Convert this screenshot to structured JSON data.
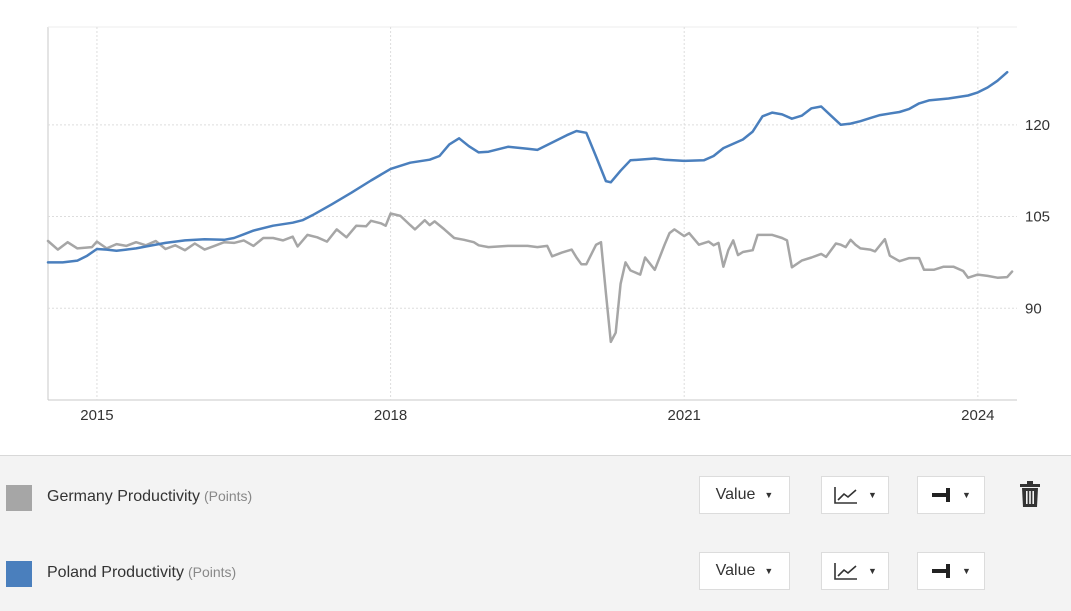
{
  "chart_data": {
    "type": "line",
    "x_ticks": [
      "2015",
      "2018",
      "2021",
      "2024"
    ],
    "y_ticks": [
      "90",
      "105",
      "120"
    ],
    "ylim": [
      75,
      136
    ],
    "xlim": [
      2014.5,
      2024.4
    ],
    "y_axis_position": "right",
    "grid": true,
    "series": [
      {
        "name": "Germany Productivity",
        "unit": "(Points)",
        "color": "#a6a6a6",
        "points": [
          [
            2014.5,
            101.0
          ],
          [
            2014.6,
            99.6
          ],
          [
            2014.7,
            100.8
          ],
          [
            2014.8,
            99.8
          ],
          [
            2014.95,
            100.0
          ],
          [
            2015.0,
            100.9
          ],
          [
            2015.1,
            99.8
          ],
          [
            2015.2,
            100.5
          ],
          [
            2015.3,
            100.2
          ],
          [
            2015.4,
            100.8
          ],
          [
            2015.5,
            100.3
          ],
          [
            2015.6,
            101.0
          ],
          [
            2015.7,
            99.7
          ],
          [
            2015.8,
            100.3
          ],
          [
            2015.9,
            99.5
          ],
          [
            2016.0,
            100.6
          ],
          [
            2016.1,
            99.6
          ],
          [
            2016.2,
            100.2
          ],
          [
            2016.3,
            100.8
          ],
          [
            2016.4,
            100.7
          ],
          [
            2016.5,
            101.1
          ],
          [
            2016.6,
            100.2
          ],
          [
            2016.7,
            101.5
          ],
          [
            2016.8,
            101.5
          ],
          [
            2016.9,
            101.1
          ],
          [
            2017.0,
            101.7
          ],
          [
            2017.05,
            100.1
          ],
          [
            2017.15,
            102.0
          ],
          [
            2017.25,
            101.6
          ],
          [
            2017.35,
            100.9
          ],
          [
            2017.45,
            102.9
          ],
          [
            2017.55,
            101.6
          ],
          [
            2017.65,
            103.5
          ],
          [
            2017.75,
            103.4
          ],
          [
            2017.8,
            104.3
          ],
          [
            2017.9,
            103.9
          ],
          [
            2017.95,
            103.5
          ],
          [
            2018.0,
            105.5
          ],
          [
            2018.1,
            105.1
          ],
          [
            2018.2,
            103.6
          ],
          [
            2018.25,
            102.9
          ],
          [
            2018.35,
            104.4
          ],
          [
            2018.4,
            103.6
          ],
          [
            2018.45,
            104.2
          ],
          [
            2018.55,
            102.9
          ],
          [
            2018.65,
            101.5
          ],
          [
            2018.75,
            101.2
          ],
          [
            2018.85,
            100.8
          ],
          [
            2018.9,
            100.3
          ],
          [
            2019.0,
            100.0
          ],
          [
            2019.2,
            100.2
          ],
          [
            2019.4,
            100.2
          ],
          [
            2019.5,
            100.0
          ],
          [
            2019.6,
            100.2
          ],
          [
            2019.65,
            98.5
          ],
          [
            2019.75,
            99.1
          ],
          [
            2019.85,
            99.6
          ],
          [
            2019.9,
            98.3
          ],
          [
            2019.95,
            97.2
          ],
          [
            2020.0,
            97.2
          ],
          [
            2020.1,
            100.4
          ],
          [
            2020.15,
            100.8
          ],
          [
            2020.2,
            92.5
          ],
          [
            2020.25,
            84.5
          ],
          [
            2020.3,
            86.0
          ],
          [
            2020.35,
            94.0
          ],
          [
            2020.4,
            97.5
          ],
          [
            2020.45,
            96.2
          ],
          [
            2020.55,
            95.5
          ],
          [
            2020.6,
            98.3
          ],
          [
            2020.7,
            96.3
          ],
          [
            2020.8,
            100.4
          ],
          [
            2020.85,
            102.3
          ],
          [
            2020.9,
            102.9
          ],
          [
            2021.0,
            101.8
          ],
          [
            2021.05,
            102.3
          ],
          [
            2021.15,
            100.4
          ],
          [
            2021.25,
            100.9
          ],
          [
            2021.3,
            100.3
          ],
          [
            2021.35,
            100.7
          ],
          [
            2021.4,
            96.8
          ],
          [
            2021.45,
            99.5
          ],
          [
            2021.5,
            101.1
          ],
          [
            2021.55,
            98.7
          ],
          [
            2021.6,
            99.2
          ],
          [
            2021.7,
            99.5
          ],
          [
            2021.75,
            102.0
          ],
          [
            2021.9,
            102.0
          ],
          [
            2022.0,
            101.5
          ],
          [
            2022.05,
            101.1
          ],
          [
            2022.1,
            96.7
          ],
          [
            2022.2,
            97.8
          ],
          [
            2022.3,
            98.3
          ],
          [
            2022.4,
            98.9
          ],
          [
            2022.45,
            98.4
          ],
          [
            2022.55,
            100.6
          ],
          [
            2022.6,
            100.4
          ],
          [
            2022.65,
            100.0
          ],
          [
            2022.7,
            101.2
          ],
          [
            2022.75,
            100.4
          ],
          [
            2022.8,
            99.8
          ],
          [
            2022.9,
            99.6
          ],
          [
            2022.95,
            99.3
          ],
          [
            2023.05,
            101.3
          ],
          [
            2023.1,
            98.6
          ],
          [
            2023.2,
            97.7
          ],
          [
            2023.3,
            98.2
          ],
          [
            2023.4,
            98.2
          ],
          [
            2023.45,
            96.3
          ],
          [
            2023.55,
            96.3
          ],
          [
            2023.65,
            96.8
          ],
          [
            2023.75,
            96.8
          ],
          [
            2023.85,
            96.1
          ],
          [
            2023.9,
            95.0
          ],
          [
            2024.0,
            95.5
          ],
          [
            2024.1,
            95.3
          ],
          [
            2024.2,
            95.0
          ],
          [
            2024.3,
            95.1
          ],
          [
            2024.35,
            96.0
          ]
        ]
      },
      {
        "name": "Poland Productivity",
        "unit": "(Points)",
        "color": "#4a7fbd",
        "points": [
          [
            2014.5,
            97.5
          ],
          [
            2014.65,
            97.5
          ],
          [
            2014.8,
            97.8
          ],
          [
            2014.9,
            98.6
          ],
          [
            2015.0,
            99.7
          ],
          [
            2015.1,
            99.6
          ],
          [
            2015.2,
            99.4
          ],
          [
            2015.3,
            99.6
          ],
          [
            2015.4,
            99.8
          ],
          [
            2015.5,
            100.1
          ],
          [
            2015.7,
            100.7
          ],
          [
            2015.9,
            101.1
          ],
          [
            2016.1,
            101.3
          ],
          [
            2016.3,
            101.2
          ],
          [
            2016.4,
            101.5
          ],
          [
            2016.5,
            102.1
          ],
          [
            2016.6,
            102.7
          ],
          [
            2016.8,
            103.5
          ],
          [
            2017.0,
            104.0
          ],
          [
            2017.1,
            104.4
          ],
          [
            2017.2,
            105.2
          ],
          [
            2017.4,
            107.0
          ],
          [
            2017.6,
            108.9
          ],
          [
            2017.8,
            110.9
          ],
          [
            2018.0,
            112.8
          ],
          [
            2018.2,
            113.8
          ],
          [
            2018.4,
            114.3
          ],
          [
            2018.5,
            114.9
          ],
          [
            2018.6,
            116.8
          ],
          [
            2018.7,
            117.8
          ],
          [
            2018.8,
            116.5
          ],
          [
            2018.9,
            115.5
          ],
          [
            2019.0,
            115.6
          ],
          [
            2019.2,
            116.4
          ],
          [
            2019.4,
            116.1
          ],
          [
            2019.5,
            115.9
          ],
          [
            2019.6,
            116.7
          ],
          [
            2019.8,
            118.3
          ],
          [
            2019.9,
            119.0
          ],
          [
            2020.0,
            118.7
          ],
          [
            2020.1,
            114.8
          ],
          [
            2020.2,
            110.8
          ],
          [
            2020.25,
            110.6
          ],
          [
            2020.35,
            112.5
          ],
          [
            2020.45,
            114.2
          ],
          [
            2020.7,
            114.5
          ],
          [
            2020.8,
            114.3
          ],
          [
            2021.0,
            114.1
          ],
          [
            2021.2,
            114.2
          ],
          [
            2021.3,
            114.9
          ],
          [
            2021.4,
            116.2
          ],
          [
            2021.6,
            117.6
          ],
          [
            2021.7,
            118.9
          ],
          [
            2021.8,
            121.4
          ],
          [
            2021.9,
            122.0
          ],
          [
            2022.0,
            121.7
          ],
          [
            2022.1,
            121.0
          ],
          [
            2022.2,
            121.5
          ],
          [
            2022.3,
            122.7
          ],
          [
            2022.4,
            123.0
          ],
          [
            2022.5,
            121.5
          ],
          [
            2022.6,
            120.0
          ],
          [
            2022.7,
            120.2
          ],
          [
            2022.8,
            120.6
          ],
          [
            2022.9,
            121.1
          ],
          [
            2023.0,
            121.6
          ],
          [
            2023.2,
            122.1
          ],
          [
            2023.3,
            122.6
          ],
          [
            2023.4,
            123.5
          ],
          [
            2023.5,
            124.0
          ],
          [
            2023.7,
            124.3
          ],
          [
            2023.9,
            124.8
          ],
          [
            2024.0,
            125.3
          ],
          [
            2024.1,
            126.1
          ],
          [
            2024.2,
            127.2
          ],
          [
            2024.3,
            128.6
          ]
        ]
      }
    ]
  },
  "legend": {
    "rows": [
      {
        "label": "Germany Productivity",
        "unit": "(Points)",
        "color": "#a6a6a6",
        "value_select": "Value",
        "chart_type_icon": "line-chart-icon",
        "axis_icon": "right-axis-icon"
      },
      {
        "label": "Poland Productivity",
        "unit": "(Points)",
        "color": "#4a7fbd",
        "value_select": "Value",
        "chart_type_icon": "line-chart-icon",
        "axis_icon": "right-axis-icon"
      }
    ],
    "delete_icon": "trash-icon"
  }
}
